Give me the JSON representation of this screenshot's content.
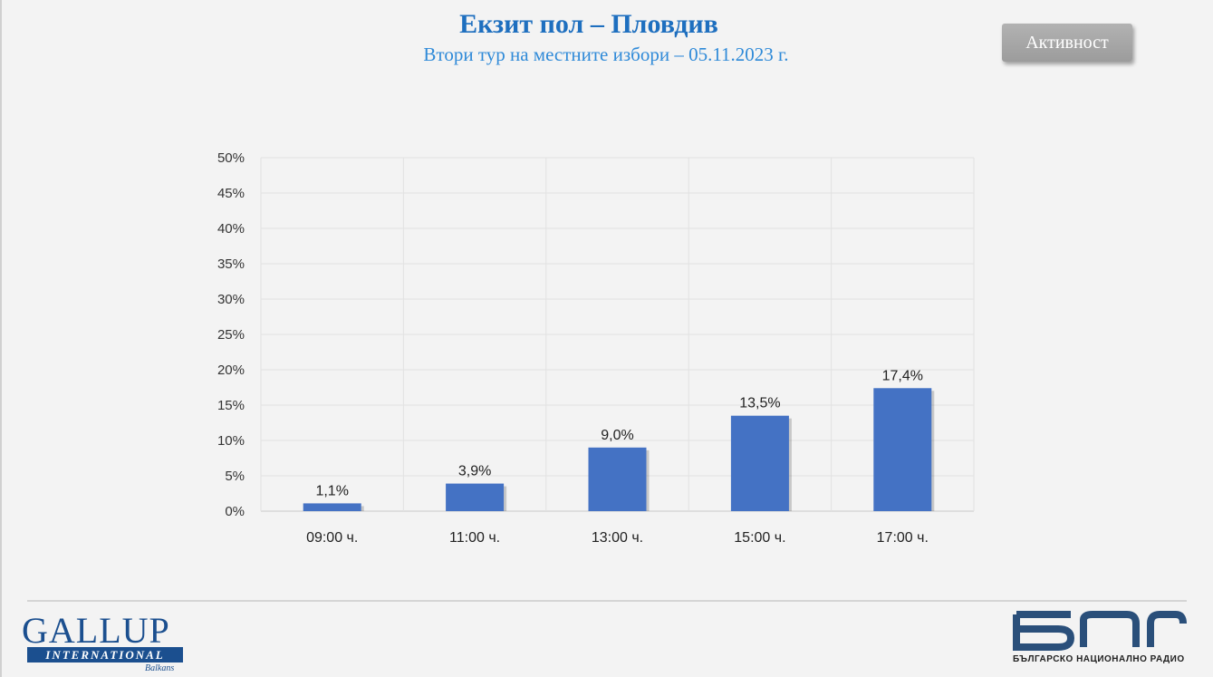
{
  "header": {
    "title": "Екзит пол – Пловдив",
    "subtitle": "Втори тур на местните избори – 05.11.2023  г."
  },
  "toolbar": {
    "activity_label": "Активност"
  },
  "footer": {
    "gallup_name": "GALLUP",
    "gallup_international": "INTERNATIONAL",
    "gallup_region": "Balkans",
    "bnr_tagline": "БЪЛГАРСКО НАЦИОНАЛНО РАДИО"
  },
  "colors": {
    "bar": "#4472c4",
    "title": "#1e6fbf",
    "subtitle": "#2f8ad8",
    "gallup": "#1b4f8f"
  },
  "chart_data": {
    "type": "bar",
    "categories": [
      "09:00 ч.",
      "11:00 ч.",
      "13:00 ч.",
      "15:00 ч.",
      "17:00 ч."
    ],
    "values": [
      1.1,
      3.9,
      9.0,
      13.5,
      17.4
    ],
    "value_labels": [
      "1,1%",
      "3,9%",
      "9,0%",
      "13,5%",
      "17,4%"
    ],
    "ylim": [
      0,
      50
    ],
    "y_ticks": [
      "0%",
      "5%",
      "10%",
      "15%",
      "20%",
      "25%",
      "30%",
      "35%",
      "40%",
      "45%",
      "50%"
    ],
    "y_tick_values": [
      0,
      5,
      10,
      15,
      20,
      25,
      30,
      35,
      40,
      45,
      50
    ],
    "title": "",
    "xlabel": "",
    "ylabel": "",
    "grid": true,
    "legend": "none"
  }
}
